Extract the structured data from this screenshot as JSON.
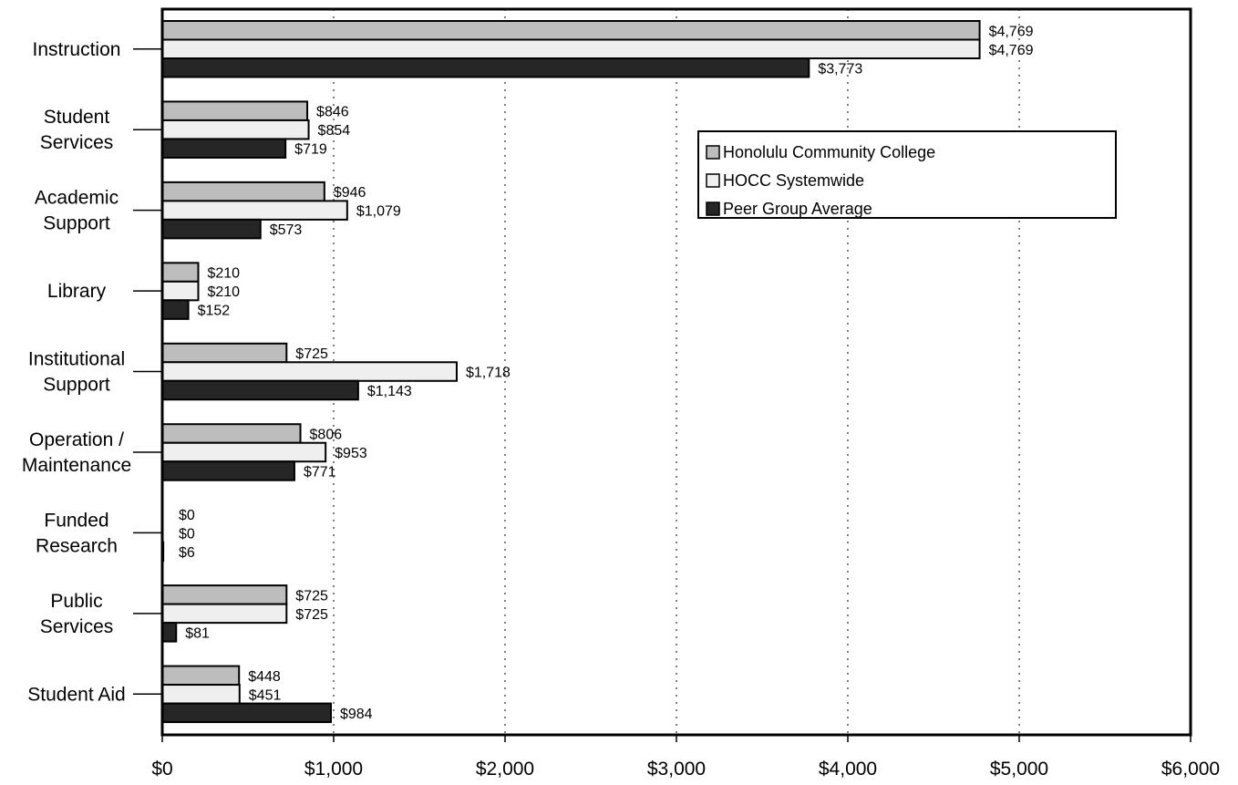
{
  "chart_data": {
    "type": "bar",
    "orientation": "horizontal",
    "categories": [
      [
        "Instruction"
      ],
      [
        "Student",
        "Services"
      ],
      [
        "Academic",
        "Support"
      ],
      [
        "Library"
      ],
      [
        "Institutional",
        "Support"
      ],
      [
        "Operation /",
        "Maintenance"
      ],
      [
        "Funded",
        "Research"
      ],
      [
        "Public",
        "Services"
      ],
      [
        "Student Aid"
      ]
    ],
    "series": [
      {
        "name": "Honolulu Community College",
        "color": "#bdbdbd",
        "values": [
          4769,
          846,
          946,
          210,
          725,
          806,
          0,
          725,
          448
        ],
        "labels": [
          "$4,769",
          "$846",
          "$946",
          "$210",
          "$725",
          "$806",
          "$0",
          "$725",
          "$448"
        ]
      },
      {
        "name": "HOCC Systemwide",
        "color": "#efefef",
        "values": [
          4769,
          854,
          1079,
          210,
          1718,
          953,
          0,
          725,
          451
        ],
        "labels": [
          "$4,769",
          "$854",
          "$1,079",
          "$210",
          "$1,718",
          "$953",
          "$0",
          "$725",
          "$451"
        ]
      },
      {
        "name": "Peer Group Average",
        "color": "#262626",
        "values": [
          3773,
          719,
          573,
          152,
          1143,
          771,
          6,
          81,
          984
        ],
        "labels": [
          "$3,773",
          "$719",
          "$573",
          "$152",
          "$1,143",
          "$771",
          "$6",
          "$81",
          "$984"
        ]
      }
    ],
    "xlim": [
      0,
      6000
    ],
    "xticks": [
      0,
      1000,
      2000,
      3000,
      4000,
      5000,
      6000
    ],
    "xtick_labels": [
      "$0",
      "$1,000",
      "$2,000",
      "$3,000",
      "$4,000",
      "$5,000",
      "$6,000"
    ],
    "grid": "vertical dotted",
    "legend_position": "upper-right"
  }
}
